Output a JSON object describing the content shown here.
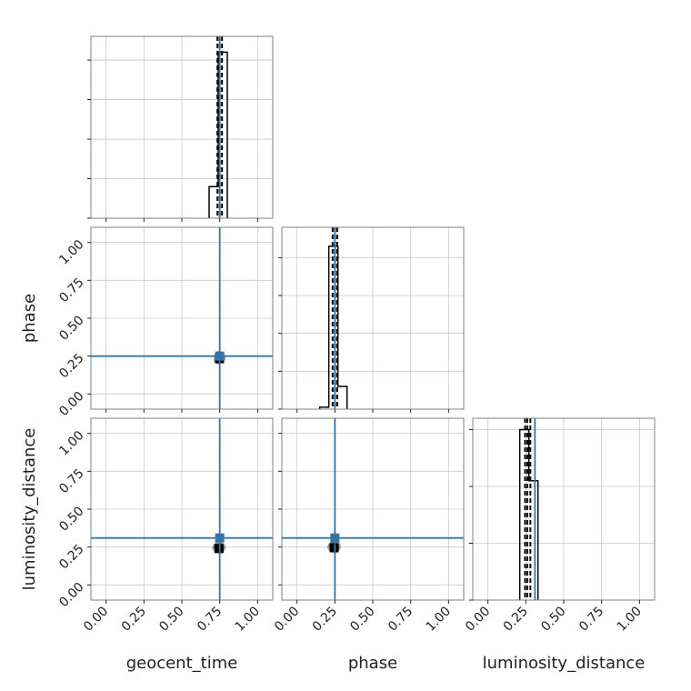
{
  "chart_data": {
    "type": "corner",
    "parameters": [
      "geocent_time",
      "phase",
      "luminosity_distance"
    ],
    "axis_labels": [
      "geocent_time",
      "phase",
      "luminosity_distance"
    ],
    "range": [
      -0.1,
      1.1
    ],
    "ticks": [
      0.0,
      0.25,
      0.5,
      0.75,
      1.0
    ],
    "tick_labels": [
      "0.00",
      "0.25",
      "0.50",
      "0.75",
      "1.00"
    ],
    "grid": true,
    "truths": {
      "geocent_time": 0.75,
      "phase": 0.25,
      "luminosity_distance": 0.31
    },
    "truth_color": "#3574a8",
    "hist_color": "#000000",
    "histograms": [
      {
        "parameter": "geocent_time",
        "bins": [
          [
            0.68,
            0.74,
            0.8
          ],
          [
            0.74,
            0.8,
            4.2
          ]
        ],
        "ymax": 4.6,
        "y_ticks": [
          0,
          1,
          2,
          3,
          4
        ],
        "quantiles": [
          0.735,
          0.75,
          0.765
        ]
      },
      {
        "parameter": "phase",
        "bins": [
          [
            0.15,
            0.21,
            0.05
          ],
          [
            0.21,
            0.27,
            4.3
          ],
          [
            0.27,
            0.33,
            0.6
          ]
        ],
        "ymax": 4.8,
        "y_ticks": [
          0,
          1,
          2,
          3,
          4
        ],
        "quantiles": [
          0.235,
          0.25,
          0.265
        ]
      },
      {
        "parameter": "luminosity_distance",
        "bins": [
          [
            0.21,
            0.27,
            3.0
          ],
          [
            0.27,
            0.33,
            2.1
          ]
        ],
        "ymax": 3.2,
        "y_ticks": [
          0,
          1,
          2,
          3
        ],
        "quantiles": [
          0.245,
          0.26,
          0.28
        ]
      }
    ],
    "scatter_panels": [
      {
        "x": "geocent_time",
        "y": "phase",
        "points": [
          [
            0.745,
            0.255
          ],
          [
            0.75,
            0.235
          ],
          [
            0.74,
            0.225
          ],
          [
            0.76,
            0.24
          ]
        ]
      },
      {
        "x": "geocent_time",
        "y": "luminosity_distance",
        "points": [
          [
            0.74,
            0.255
          ],
          [
            0.76,
            0.25
          ],
          [
            0.75,
            0.235
          ],
          [
            0.73,
            0.245
          ]
        ]
      },
      {
        "x": "phase",
        "y": "luminosity_distance",
        "points": [
          [
            0.24,
            0.26
          ],
          [
            0.26,
            0.255
          ],
          [
            0.25,
            0.24
          ],
          [
            0.23,
            0.25
          ]
        ]
      }
    ]
  }
}
